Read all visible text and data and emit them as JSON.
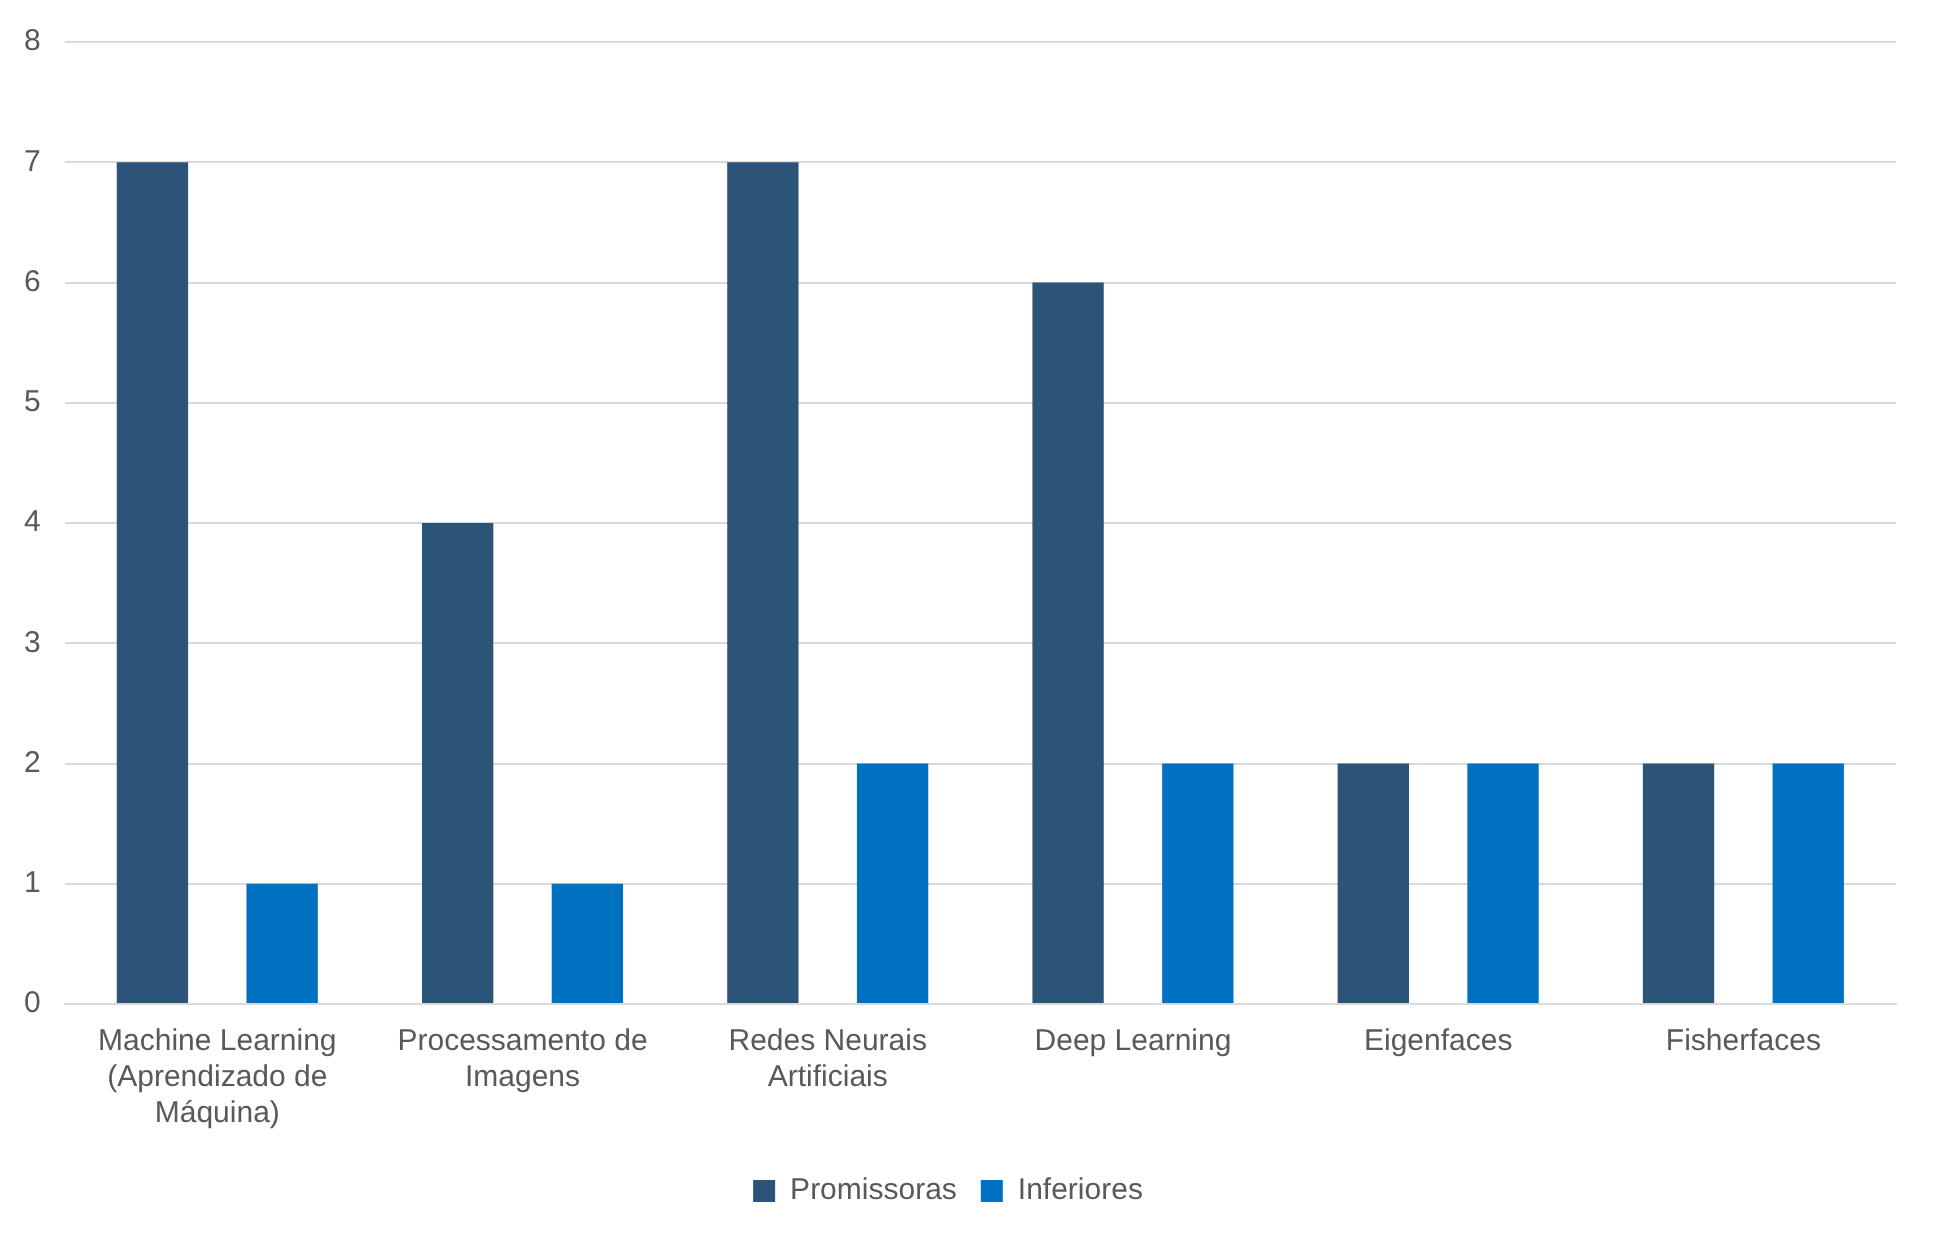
{
  "chart_data": {
    "type": "bar",
    "categories": [
      "Machine Learning (Aprendizado de Máquina)",
      "Processamento de Imagens",
      "Redes Neurais Artificiais",
      "Deep Learning",
      "Eigenfaces",
      "Fisherfaces"
    ],
    "series": [
      {
        "name": "Promissoras",
        "color": "#2c5478",
        "values": [
          7,
          4,
          7,
          6,
          2,
          2
        ]
      },
      {
        "name": "Inferiores",
        "color": "#0070c0",
        "values": [
          1,
          1,
          2,
          2,
          2,
          2
        ]
      }
    ],
    "ylim": [
      0,
      8
    ],
    "yticks": [
      0,
      1,
      2,
      3,
      4,
      5,
      6,
      7,
      8
    ],
    "grid": "y",
    "legend": "bottom"
  }
}
